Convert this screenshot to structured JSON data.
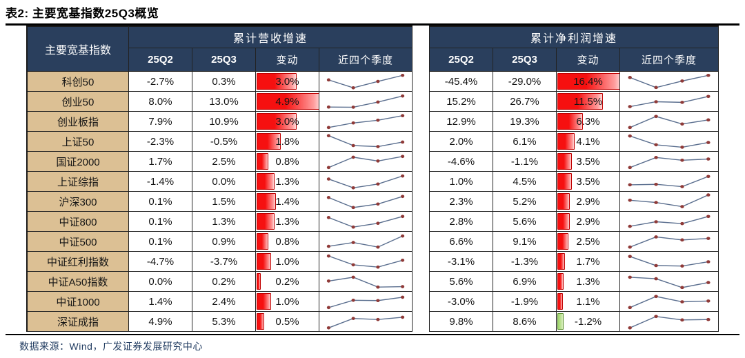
{
  "title": "表2:  主要宽基指数25Q3概览",
  "source": "数据来源：Wind，广发证券发展研究中心",
  "table": {
    "corner": "主要宽基指数",
    "group_rev": "累计营收增速",
    "group_profit": "累计净利润增速",
    "subcols": {
      "q2": "25Q2",
      "q3": "25Q3",
      "chg": "变动",
      "spark": "近四个季度"
    }
  },
  "chart_data": {
    "type": "table",
    "title": "表2: 主要宽基指数25Q3概览",
    "column_groups": [
      "累计营收增速",
      "累计净利润增速"
    ],
    "columns": [
      "25Q2",
      "25Q3",
      "变动",
      "近四个季度"
    ],
    "bar_max": {
      "revenue": 4.9,
      "profit": 16.4
    },
    "colors": {
      "header_bg": "#2A3F5D",
      "name_bg": "#DCC094",
      "positive_bar": "#F61010",
      "negative_bar": "#9DD466",
      "spark_line": "#5B6F8F",
      "spark_dot": "#8F3A38"
    },
    "rows": [
      {
        "name": "科创50",
        "rev": {
          "q2": "-2.7%",
          "q3": "0.3%",
          "chg": 3.0,
          "spark": [
            0.62,
            0.1,
            0.52,
            0.92
          ]
        },
        "profit": {
          "q2": "-45.4%",
          "q3": "-29.0%",
          "chg": 16.4,
          "spark": [
            0.78,
            0.12,
            0.55,
            0.92
          ]
        }
      },
      {
        "name": "创业50",
        "rev": {
          "q2": "8.0%",
          "q3": "13.0%",
          "chg": 4.9,
          "spark": [
            0.15,
            0.14,
            0.48,
            0.88
          ]
        },
        "profit": {
          "q2": "15.2%",
          "q3": "26.7%",
          "chg": 11.5,
          "spark": [
            0.18,
            0.5,
            0.46,
            0.85
          ]
        }
      },
      {
        "name": "创业板指",
        "rev": {
          "q2": "7.9%",
          "q3": "10.9%",
          "chg": 3.0,
          "spark": [
            0.12,
            0.42,
            0.6,
            0.9
          ]
        },
        "profit": {
          "q2": "12.9%",
          "q3": "19.3%",
          "chg": 6.3,
          "spark": [
            0.12,
            0.85,
            0.35,
            0.62
          ]
        }
      },
      {
        "name": "上证50",
        "rev": {
          "q2": "-2.3%",
          "q3": "-0.5%",
          "chg": 1.8,
          "spark": [
            0.9,
            0.25,
            0.18,
            0.48
          ]
        },
        "profit": {
          "q2": "2.0%",
          "q3": "6.1%",
          "chg": 4.1,
          "spark": [
            0.88,
            0.3,
            0.14,
            0.45
          ]
        }
      },
      {
        "name": "国证2000",
        "rev": {
          "q2": "1.7%",
          "q3": "2.5%",
          "chg": 0.8,
          "spark": [
            0.12,
            0.8,
            0.55,
            0.85
          ]
        },
        "profit": {
          "q2": "-4.6%",
          "q3": "-1.1%",
          "chg": 3.5,
          "spark": [
            0.12,
            0.78,
            0.6,
            0.68
          ]
        }
      },
      {
        "name": "上证综指",
        "rev": {
          "q2": "-1.4%",
          "q3": "0.0%",
          "chg": 1.3,
          "spark": [
            0.68,
            0.1,
            0.35,
            0.88
          ]
        },
        "profit": {
          "q2": "1.0%",
          "q3": "4.5%",
          "chg": 3.5,
          "spark": [
            0.3,
            0.33,
            0.18,
            0.85
          ]
        }
      },
      {
        "name": "沪深300",
        "rev": {
          "q2": "0.1%",
          "q3": "1.5%",
          "chg": 1.4,
          "spark": [
            0.78,
            0.12,
            0.35,
            0.85
          ]
        },
        "profit": {
          "q2": "2.3%",
          "q3": "5.2%",
          "chg": 2.9,
          "spark": [
            0.6,
            0.45,
            0.18,
            0.95
          ]
        }
      },
      {
        "name": "中证800",
        "rev": {
          "q2": "0.1%",
          "q3": "1.3%",
          "chg": 1.3,
          "spark": [
            0.78,
            0.15,
            0.4,
            0.85
          ]
        },
        "profit": {
          "q2": "2.8%",
          "q3": "5.6%",
          "chg": 2.9,
          "spark": [
            0.2,
            0.5,
            0.38,
            0.85
          ]
        }
      },
      {
        "name": "中证500",
        "rev": {
          "q2": "0.1%",
          "q3": "0.9%",
          "chg": 0.8,
          "spark": [
            0.2,
            0.45,
            0.15,
            0.88
          ]
        },
        "profit": {
          "q2": "6.6%",
          "q3": "9.1%",
          "chg": 2.5,
          "spark": [
            0.15,
            0.82,
            0.62,
            0.72
          ]
        }
      },
      {
        "name": "中证红利指数",
        "rev": {
          "q2": "-4.7%",
          "q3": "-3.7%",
          "chg": 1.0,
          "spark": [
            0.88,
            0.3,
            0.15,
            0.6
          ]
        },
        "profit": {
          "q2": "-3.1%",
          "q3": "-1.3%",
          "chg": 1.7,
          "spark": [
            0.85,
            0.25,
            0.22,
            0.5
          ]
        }
      },
      {
        "name": "中证A50指数",
        "rev": {
          "q2": "0.0%",
          "q3": "0.2%",
          "chg": 0.2,
          "spark": [
            0.55,
            0.8,
            0.15,
            0.18
          ]
        },
        "profit": {
          "q2": "5.6%",
          "q3": "6.9%",
          "chg": 1.3,
          "spark": [
            0.8,
            0.7,
            0.12,
            0.45
          ]
        }
      },
      {
        "name": "中证1000",
        "rev": {
          "q2": "1.4%",
          "q3": "2.4%",
          "chg": 1.0,
          "spark": [
            0.12,
            0.6,
            0.58,
            0.8
          ]
        },
        "profit": {
          "q2": "-3.0%",
          "q3": "-1.9%",
          "chg": 1.1,
          "spark": [
            0.12,
            0.85,
            0.5,
            0.55
          ]
        }
      },
      {
        "name": "深证成指",
        "rev": {
          "q2": "4.9%",
          "q3": "5.3%",
          "chg": 0.5,
          "spark": [
            0.1,
            0.72,
            0.65,
            0.8
          ]
        },
        "profit": {
          "q2": "9.8%",
          "q3": "8.6%",
          "chg": -1.2,
          "spark": [
            0.1,
            0.85,
            0.62,
            0.65
          ]
        }
      }
    ]
  }
}
